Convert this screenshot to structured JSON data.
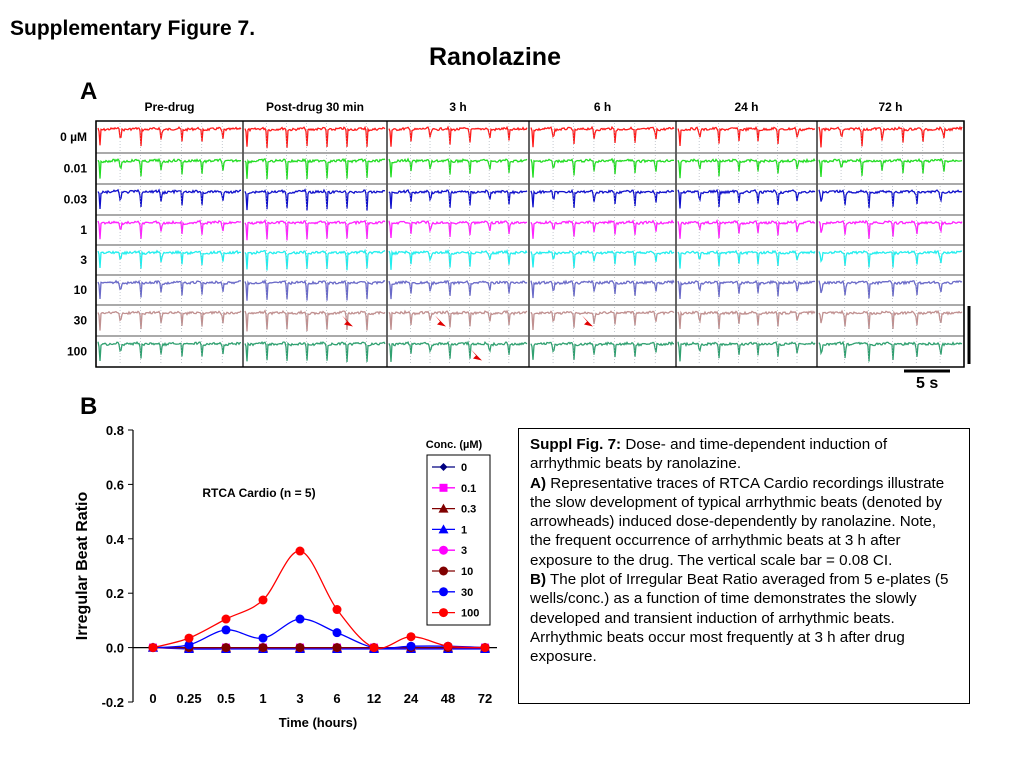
{
  "titles": {
    "supplementary": "Supplementary Figure 7.",
    "main": "Ranolazine"
  },
  "panel_a": {
    "letter": "A",
    "timepoints": [
      "Pre-drug",
      "Post-drug 30 min",
      "3 h",
      "6 h",
      "24 h",
      "72 h"
    ],
    "concentrations": [
      "0 µM",
      "0.01",
      "0.03",
      "1",
      "3",
      "10",
      "30",
      "100"
    ],
    "trace_colors": [
      "#ff1a1a",
      "#22dd22",
      "#1010cc",
      "#ff22ff",
      "#22eeee",
      "#6a6ac8",
      "#c09090",
      "#30a070"
    ],
    "scale_label": "5 s",
    "arrowheads": [
      {
        "concentration": "30",
        "timepoint": "Post-drug 30 min"
      },
      {
        "concentration": "30",
        "timepoint": "3 h"
      },
      {
        "concentration": "30",
        "timepoint": "6 h"
      },
      {
        "concentration": "100",
        "timepoint": "3 h"
      }
    ],
    "arrow_color": "#e00000"
  },
  "panel_b": {
    "letter": "B"
  },
  "chart_data": {
    "type": "line",
    "subtitle": "RTCA Cardio  (n = 5)",
    "xlabel": "Time (hours)",
    "ylabel": "Irregular Beat Ratio",
    "categories": [
      "0",
      "0.25",
      "0.5",
      "1",
      "3",
      "6",
      "12",
      "24",
      "48",
      "72"
    ],
    "yticks": [
      "0.8",
      "0.6",
      "0.4",
      "0.2",
      "0.0",
      "-0.2"
    ],
    "ylim": [
      -0.2,
      0.8
    ],
    "legend_title": "Conc. (µM)",
    "legend_placement": "top-right",
    "grid": false,
    "series": [
      {
        "name": "0",
        "color": "#000080",
        "marker": "diamond",
        "values": [
          0,
          0,
          0,
          0,
          0,
          0,
          0,
          0,
          0,
          0
        ]
      },
      {
        "name": "0.1",
        "color": "#ff00ff",
        "marker": "square",
        "values": [
          0,
          0,
          0,
          0,
          0,
          0,
          0,
          0,
          0,
          0
        ]
      },
      {
        "name": "0.3",
        "color": "#800000",
        "marker": "triangle",
        "values": [
          0,
          0,
          0,
          0,
          0,
          0,
          0,
          0,
          0,
          0
        ]
      },
      {
        "name": "1",
        "color": "#0000ff",
        "marker": "triangle",
        "values": [
          0,
          -0.005,
          -0.005,
          -0.005,
          -0.005,
          -0.005,
          -0.005,
          -0.005,
          -0.005,
          -0.005
        ]
      },
      {
        "name": "3",
        "color": "#ff00ff",
        "marker": "circle",
        "values": [
          0,
          0,
          0,
          0,
          0,
          0,
          0,
          0,
          0,
          0
        ]
      },
      {
        "name": "10",
        "color": "#800000",
        "marker": "circle",
        "values": [
          0,
          0,
          0,
          0,
          0,
          0,
          0,
          0,
          0,
          0
        ]
      },
      {
        "name": "30",
        "color": "#0000ff",
        "marker": "circle",
        "values": [
          0,
          0.01,
          0.065,
          0.035,
          0.105,
          0.055,
          0,
          0.005,
          0.005,
          0
        ]
      },
      {
        "name": "100",
        "color": "#ff0000",
        "marker": "circle",
        "values": [
          0,
          0.035,
          0.105,
          0.175,
          0.355,
          0.14,
          0,
          0.04,
          0.005,
          0
        ]
      }
    ]
  },
  "caption": {
    "heading": "Suppl Fig. 7:",
    "heading_text": " Dose- and time-dependent induction of arrhythmic beats by ranolazine.",
    "a_label": "A)",
    "a_text": " Representative traces of RTCA Cardio recordings illustrate the slow development of typical arrhythmic beats (denoted by arrowheads) induced dose-dependently by ranolazine. Note, the frequent occurrence of arrhythmic beats at 3 h after exposure to the drug. The vertical scale bar = 0.08 CI.",
    "b_label": "B)",
    "b_text": " The plot of Irregular Beat Ratio averaged from 5 e-plates (5 wells/conc.) as a function of time demonstrates the slowly developed and transient  induction of arrhythmic beats. Arrhythmic beats occur most frequently at 3 h after drug exposure."
  }
}
